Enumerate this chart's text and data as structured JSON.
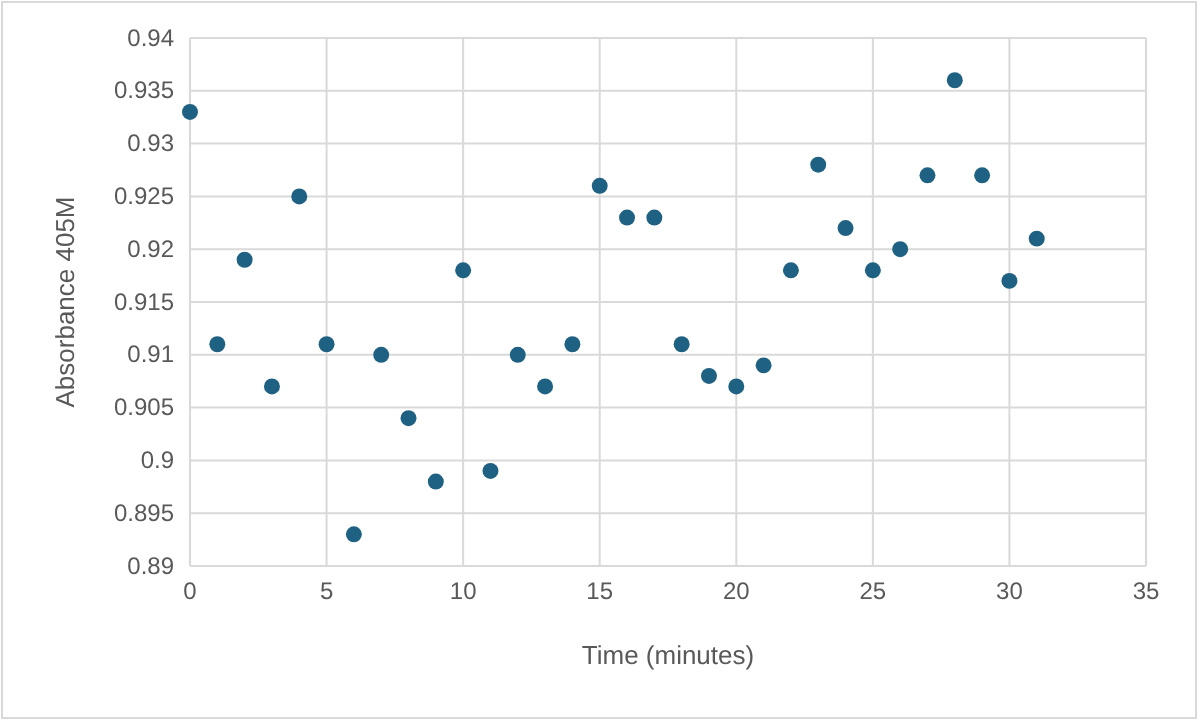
{
  "chart_data": {
    "type": "scatter",
    "xlabel": "Time (minutes)",
    "ylabel": "Absorbance 405M",
    "x": [
      0,
      1,
      2,
      3,
      4,
      5,
      6,
      7,
      8,
      9,
      10,
      11,
      12,
      13,
      14,
      15,
      16,
      17,
      18,
      19,
      20,
      21,
      22,
      23,
      24,
      25,
      26,
      27,
      28,
      29,
      30,
      31
    ],
    "series": [
      {
        "color": "#1f6182",
        "values": [
          0.933,
          0.911,
          0.919,
          0.907,
          0.925,
          0.911,
          0.893,
          0.91,
          0.904,
          0.898,
          0.918,
          0.899,
          0.91,
          0.907,
          0.911,
          0.926,
          0.923,
          0.923,
          0.911,
          0.908,
          0.907,
          0.909,
          0.918,
          0.928,
          0.922,
          0.918,
          0.92,
          0.927,
          0.936,
          0.927,
          0.917,
          0.921
        ]
      }
    ],
    "xlim": [
      0,
      35
    ],
    "xticks": [
      0,
      5,
      10,
      15,
      20,
      25,
      30,
      35
    ],
    "ylim": [
      0.89,
      0.94
    ],
    "yticks": [
      0.89,
      0.895,
      0.9,
      0.905,
      0.91,
      0.915,
      0.92,
      0.925,
      0.93,
      0.935,
      0.94
    ],
    "grid": true,
    "marker": "circle"
  }
}
